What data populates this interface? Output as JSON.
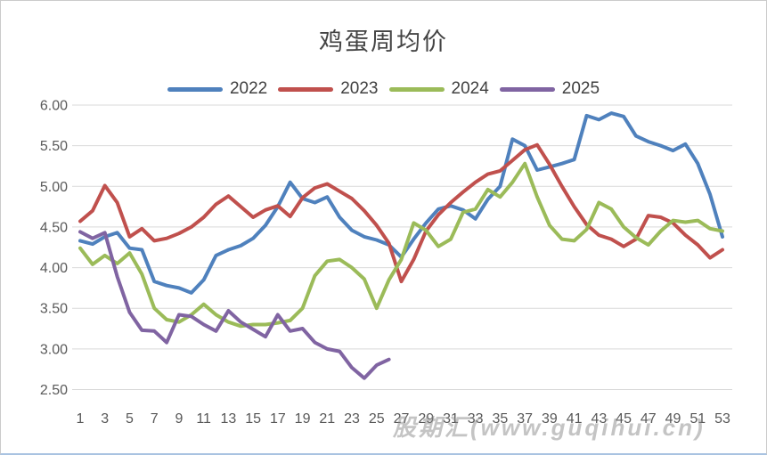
{
  "page": {
    "watermark": "股期汇(www.guqihui.cn)"
  },
  "chart_data": {
    "type": "line",
    "title": "鸡蛋周均价",
    "xlabel": "",
    "ylabel": "",
    "x_description": "week of year, 1-53",
    "x_ticks_shown": [
      "1",
      "3",
      "5",
      "7",
      "9",
      "11",
      "13",
      "15",
      "17",
      "19",
      "21",
      "23",
      "25",
      "27",
      "29",
      "31",
      "33",
      "35",
      "37",
      "39",
      "41",
      "43",
      "45",
      "47",
      "49",
      "51",
      "53"
    ],
    "y_tick_labels": [
      "6.00",
      "5.50",
      "5.00",
      "4.50",
      "4.00",
      "3.50",
      "3.00",
      "2.50"
    ],
    "ylim": [
      2.5,
      6.0
    ],
    "y_tick_step": 0.5,
    "grid": true,
    "legend_position": "top-center",
    "line_width": 4,
    "colors": {
      "grid": "#d9d9d9",
      "axis_text": "#595959",
      "title_text": "#444444"
    },
    "series": [
      {
        "name": "2022",
        "color": "#4F81BD",
        "values": [
          4.33,
          4.29,
          4.38,
          4.43,
          4.24,
          4.22,
          3.83,
          3.78,
          3.75,
          3.69,
          3.85,
          4.15,
          4.22,
          4.27,
          4.36,
          4.52,
          4.75,
          5.05,
          4.85,
          4.8,
          4.87,
          4.62,
          4.46,
          4.38,
          4.34,
          4.28,
          4.13,
          4.35,
          4.55,
          4.72,
          4.76,
          4.71,
          4.6,
          4.84,
          5.0,
          5.58,
          5.5,
          5.2,
          5.24,
          5.28,
          5.33,
          5.87,
          5.82,
          5.9,
          5.86,
          5.62,
          5.55,
          5.5,
          5.44,
          5.52,
          5.28,
          4.9,
          4.38
        ]
      },
      {
        "name": "2023",
        "color": "#C0504D",
        "values": [
          4.57,
          4.7,
          5.01,
          4.8,
          4.38,
          4.48,
          4.33,
          4.36,
          4.42,
          4.5,
          4.62,
          4.78,
          4.88,
          4.75,
          4.62,
          4.71,
          4.76,
          4.63,
          4.86,
          4.98,
          5.03,
          4.94,
          4.85,
          4.7,
          4.52,
          4.3,
          3.83,
          4.1,
          4.45,
          4.65,
          4.8,
          4.93,
          5.05,
          5.15,
          5.19,
          5.32,
          5.45,
          5.51,
          5.27,
          5.0,
          4.75,
          4.53,
          4.4,
          4.35,
          4.26,
          4.35,
          4.64,
          4.62,
          4.55,
          4.4,
          4.28,
          4.12,
          4.22
        ]
      },
      {
        "name": "2024",
        "color": "#9BBB59",
        "values": [
          4.24,
          4.04,
          4.15,
          4.05,
          4.18,
          3.92,
          3.5,
          3.36,
          3.33,
          3.42,
          3.55,
          3.42,
          3.33,
          3.28,
          3.3,
          3.3,
          3.32,
          3.35,
          3.5,
          3.9,
          4.08,
          4.1,
          4.0,
          3.86,
          3.5,
          3.85,
          4.1,
          4.55,
          4.46,
          4.26,
          4.35,
          4.68,
          4.72,
          4.96,
          4.87,
          5.05,
          5.28,
          4.87,
          4.52,
          4.35,
          4.33,
          4.47,
          4.8,
          4.72,
          4.5,
          4.37,
          4.28,
          4.45,
          4.58,
          4.56,
          4.58,
          4.48,
          4.45
        ]
      },
      {
        "name": "2025",
        "color": "#8064A2",
        "values": [
          4.44,
          4.36,
          4.43,
          3.89,
          3.45,
          3.23,
          3.22,
          3.08,
          3.42,
          3.4,
          3.3,
          3.22,
          3.47,
          3.33,
          3.24,
          3.15,
          3.42,
          3.22,
          3.25,
          3.08,
          3.0,
          2.97,
          2.77,
          2.64,
          2.8,
          2.87
        ]
      }
    ]
  }
}
